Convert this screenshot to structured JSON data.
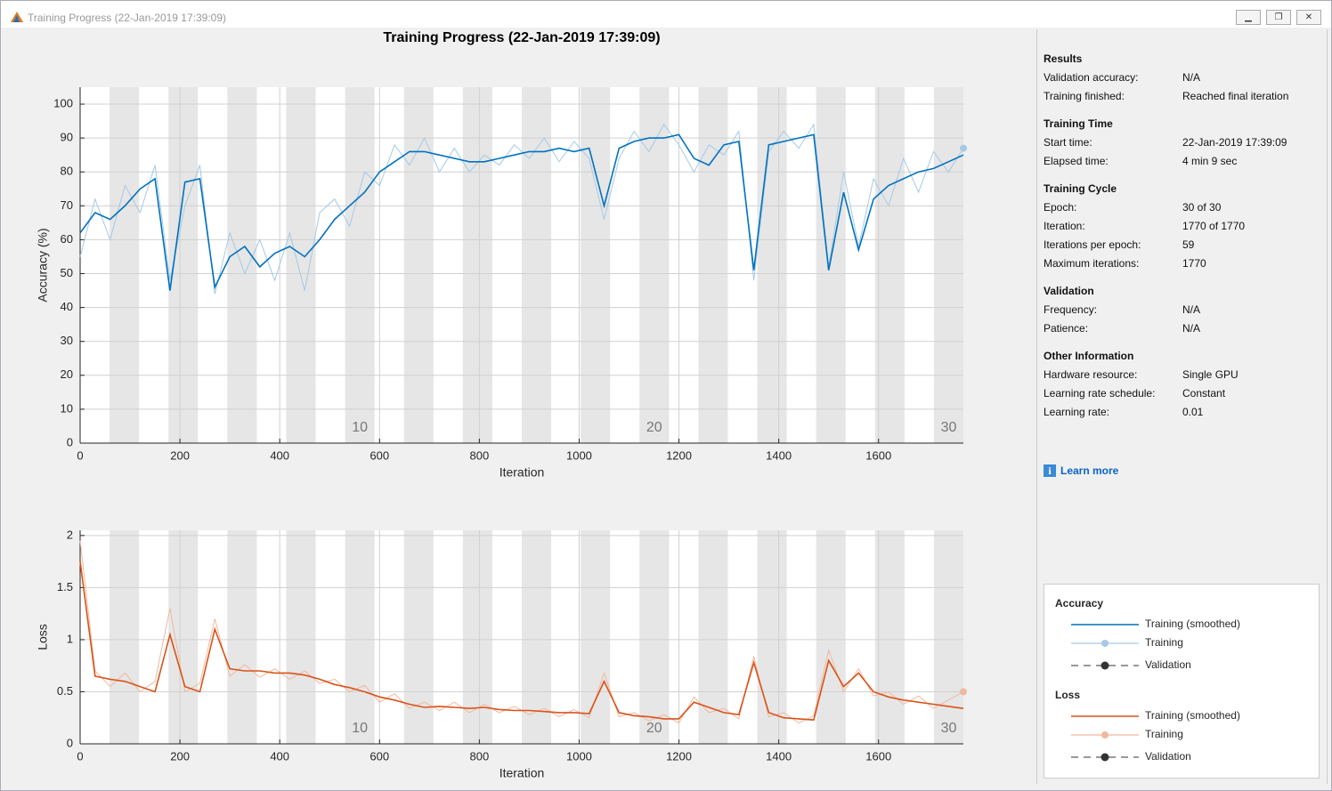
{
  "window_title": "Training Progress (22-Jan-2019 17:39:09)",
  "figure_title": "Training Progress (22-Jan-2019 17:39:09)",
  "info": [
    {
      "title": "Results",
      "rows": [
        [
          "Validation accuracy:",
          "N/A"
        ],
        [
          "Training finished:",
          "Reached final iteration"
        ]
      ]
    },
    {
      "title": "Training Time",
      "rows": [
        [
          "Start time:",
          "22-Jan-2019 17:39:09"
        ],
        [
          "Elapsed time:",
          "4 min 9 sec"
        ]
      ]
    },
    {
      "title": "Training Cycle",
      "rows": [
        [
          "Epoch:",
          "30 of 30"
        ],
        [
          "Iteration:",
          "1770 of 1770"
        ],
        [
          "Iterations per epoch:",
          "59"
        ],
        [
          "Maximum iterations:",
          "1770"
        ]
      ]
    },
    {
      "title": "Validation",
      "rows": [
        [
          "Frequency:",
          "N/A"
        ],
        [
          "Patience:",
          "N/A"
        ]
      ]
    },
    {
      "title": "Other Information",
      "rows": [
        [
          "Hardware resource:",
          "Single GPU"
        ],
        [
          "Learning rate schedule:",
          "Constant"
        ],
        [
          "Learning rate:",
          "0.01"
        ]
      ]
    }
  ],
  "learn_more": "Learn more",
  "chart_data": [
    {
      "type": "line",
      "ylabel": "Accuracy (%)",
      "xlabel": "Iteration",
      "legend_title": "Accuracy",
      "validation_label": "Validation",
      "xlim": [
        0,
        1770
      ],
      "ylim": [
        0,
        105
      ],
      "xticks": [
        0,
        200,
        400,
        600,
        800,
        1000,
        1200,
        1400,
        1600
      ],
      "yticks": [
        0,
        10,
        20,
        30,
        40,
        50,
        60,
        70,
        80,
        90,
        100
      ],
      "grid": true,
      "epochs": 30,
      "iterations_per_epoch": 59,
      "epoch_ticks": [
        10,
        20,
        30
      ],
      "x": [
        0,
        30,
        60,
        90,
        120,
        150,
        180,
        210,
        240,
        270,
        300,
        330,
        360,
        390,
        420,
        450,
        480,
        510,
        540,
        570,
        600,
        630,
        660,
        690,
        720,
        750,
        780,
        810,
        840,
        870,
        900,
        930,
        960,
        990,
        1020,
        1050,
        1080,
        1110,
        1140,
        1170,
        1200,
        1230,
        1260,
        1290,
        1320,
        1350,
        1380,
        1410,
        1440,
        1470,
        1500,
        1530,
        1560,
        1590,
        1620,
        1650,
        1680,
        1710,
        1740,
        1770
      ],
      "series": [
        {
          "name": "Training (smoothed)",
          "color": "#0072bd",
          "values": [
            62,
            68,
            66,
            70,
            75,
            78,
            45,
            77,
            78,
            46,
            55,
            58,
            52,
            56,
            58,
            55,
            60,
            66,
            70,
            74,
            80,
            83,
            86,
            86,
            85,
            84,
            83,
            83,
            84,
            85,
            86,
            86,
            87,
            86,
            87,
            70,
            87,
            89,
            90,
            90,
            91,
            84,
            82,
            88,
            89,
            51,
            88,
            89,
            90,
            91,
            51,
            74,
            57,
            72,
            76,
            78,
            80,
            81,
            83,
            85
          ]
        },
        {
          "name": "Training",
          "color": "#a6c9e6",
          "values": [
            55,
            72,
            60,
            76,
            68,
            82,
            48,
            70,
            82,
            44,
            62,
            50,
            60,
            48,
            62,
            45,
            68,
            72,
            64,
            80,
            76,
            88,
            82,
            90,
            80,
            87,
            80,
            85,
            82,
            88,
            84,
            90,
            83,
            89,
            84,
            66,
            84,
            92,
            86,
            94,
            88,
            80,
            88,
            85,
            92,
            48,
            86,
            92,
            87,
            94,
            52,
            80,
            58,
            78,
            70,
            84,
            74,
            86,
            80,
            87
          ]
        }
      ]
    },
    {
      "type": "line",
      "ylabel": "Loss",
      "xlabel": "Iteration",
      "legend_title": "Loss",
      "validation_label": "Validation",
      "xlim": [
        0,
        1770
      ],
      "ylim": [
        0,
        2.05
      ],
      "xticks": [
        0,
        200,
        400,
        600,
        800,
        1000,
        1200,
        1400,
        1600
      ],
      "yticks": [
        0,
        0.5,
        1,
        1.5,
        2
      ],
      "grid": true,
      "epochs": 30,
      "iterations_per_epoch": 59,
      "epoch_ticks": [
        10,
        20,
        30
      ],
      "x": [
        0,
        30,
        60,
        90,
        120,
        150,
        180,
        210,
        240,
        270,
        300,
        330,
        360,
        390,
        420,
        450,
        480,
        510,
        540,
        570,
        600,
        630,
        660,
        690,
        720,
        750,
        780,
        810,
        840,
        870,
        900,
        930,
        960,
        990,
        1020,
        1050,
        1080,
        1110,
        1140,
        1170,
        1200,
        1230,
        1260,
        1290,
        1320,
        1350,
        1380,
        1410,
        1440,
        1470,
        1500,
        1530,
        1560,
        1590,
        1620,
        1650,
        1680,
        1710,
        1740,
        1770
      ],
      "series": [
        {
          "name": "Training (smoothed)",
          "color": "#d95319",
          "values": [
            1.75,
            0.65,
            0.62,
            0.6,
            0.55,
            0.5,
            1.05,
            0.55,
            0.5,
            1.1,
            0.72,
            0.7,
            0.7,
            0.68,
            0.68,
            0.66,
            0.62,
            0.57,
            0.54,
            0.5,
            0.45,
            0.42,
            0.38,
            0.35,
            0.36,
            0.35,
            0.34,
            0.35,
            0.33,
            0.32,
            0.32,
            0.31,
            0.3,
            0.3,
            0.29,
            0.6,
            0.3,
            0.27,
            0.26,
            0.24,
            0.24,
            0.4,
            0.35,
            0.3,
            0.28,
            0.78,
            0.3,
            0.25,
            0.24,
            0.23,
            0.8,
            0.55,
            0.68,
            0.5,
            0.45,
            0.42,
            0.4,
            0.38,
            0.36,
            0.34
          ]
        },
        {
          "name": "Training",
          "color": "#f0b89e",
          "values": [
            1.95,
            0.7,
            0.55,
            0.68,
            0.5,
            0.6,
            1.3,
            0.5,
            0.58,
            1.2,
            0.65,
            0.76,
            0.64,
            0.72,
            0.62,
            0.7,
            0.58,
            0.62,
            0.5,
            0.56,
            0.4,
            0.48,
            0.34,
            0.4,
            0.32,
            0.4,
            0.3,
            0.38,
            0.3,
            0.36,
            0.28,
            0.34,
            0.26,
            0.33,
            0.25,
            0.68,
            0.26,
            0.3,
            0.22,
            0.28,
            0.2,
            0.45,
            0.3,
            0.34,
            0.24,
            0.84,
            0.26,
            0.3,
            0.2,
            0.27,
            0.9,
            0.5,
            0.72,
            0.46,
            0.5,
            0.38,
            0.46,
            0.34,
            0.42,
            0.5
          ]
        }
      ]
    }
  ]
}
